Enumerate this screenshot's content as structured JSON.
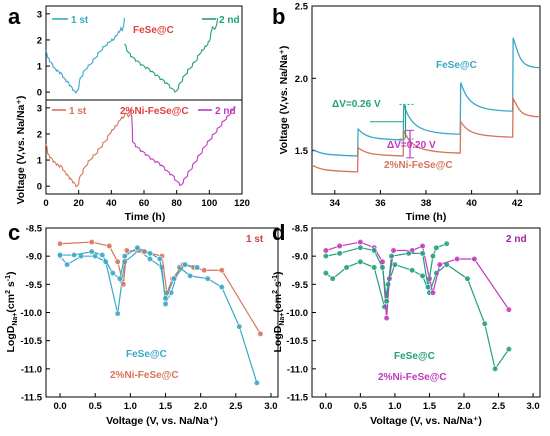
{
  "colors": {
    "blue": "#3aa8c5",
    "green": "#20a07a",
    "orange": "#d8735a",
    "purple": "#c038c0",
    "ab_red": "#e04040",
    "d_label": "#a020a0",
    "c_label": "#d04040",
    "b_label_c": "#3aa8c5",
    "b_label_ni": "#d87060"
  },
  "chart_data": [
    {
      "id": "a",
      "letter": "a",
      "type": "line",
      "xlabel": "Time (h)",
      "ylabel": "Voltage (V,vs. Na/Na⁺)",
      "xlim": [
        0,
        120
      ],
      "xticks": [
        "0",
        "20",
        "40",
        "60",
        "80",
        "100",
        "120"
      ],
      "top": {
        "ylim": [
          -0.3,
          3.3
        ],
        "yticks": [
          "0",
          "1",
          "2",
          "3"
        ],
        "legend": [
          "1 st",
          "2 nd"
        ],
        "label": "FeSe@C",
        "series": [
          {
            "name": "1 st",
            "color": "blue",
            "points": [
              [
                0,
                1.6
              ],
              [
                0.8,
                1.35
              ],
              [
                3,
                1.15
              ],
              [
                5,
                0.95
              ],
              [
                7,
                0.85
              ],
              [
                9,
                0.75
              ],
              [
                11,
                0.55
              ],
              [
                13,
                0.42
              ],
              [
                15,
                0.25
              ],
              [
                17,
                0.08
              ],
              [
                19,
                0.05
              ],
              [
                21,
                0.55
              ],
              [
                24,
                0.85
              ],
              [
                27,
                1.05
              ],
              [
                30,
                1.3
              ],
              [
                33,
                1.55
              ],
              [
                36,
                1.75
              ],
              [
                39,
                1.9
              ],
              [
                41,
                1.98
              ],
              [
                43,
                2.15
              ],
              [
                45,
                2.3
              ],
              [
                46,
                2.45
              ],
              [
                47,
                2.45
              ],
              [
                48,
                2.85
              ]
            ]
          },
          {
            "name": "2 nd",
            "color": "green",
            "points": [
              [
                48,
                1.85
              ],
              [
                50,
                1.55
              ],
              [
                53,
                1.35
              ],
              [
                56,
                1.2
              ],
              [
                59,
                1.05
              ],
              [
                62,
                0.95
              ],
              [
                65,
                0.8
              ],
              [
                68,
                0.65
              ],
              [
                71,
                0.5
              ],
              [
                74,
                0.35
              ],
              [
                77,
                0.15
              ],
              [
                80,
                0.05
              ],
              [
                82,
                0.35
              ],
              [
                85,
                0.65
              ],
              [
                88,
                0.9
              ],
              [
                91,
                1.15
              ],
              [
                94,
                1.45
              ],
              [
                96,
                1.6
              ],
              [
                98,
                1.75
              ],
              [
                100,
                1.95
              ],
              [
                101,
                2.3
              ],
              [
                102,
                2.5
              ],
              [
                104,
                2.5
              ],
              [
                105,
                2.85
              ]
            ]
          }
        ]
      },
      "bottom": {
        "ylim": [
          -0.3,
          3.3
        ],
        "yticks": [
          "0",
          "1",
          "2",
          "3"
        ],
        "legend": [
          "1 st",
          "2 nd"
        ],
        "label": "2%Ni-FeSe@C",
        "series": [
          {
            "name": "1 st",
            "color": "orange",
            "points": [
              [
                0,
                1.6
              ],
              [
                1,
                1.25
              ],
              [
                3,
                1.1
              ],
              [
                5,
                0.95
              ],
              [
                7,
                0.85
              ],
              [
                9,
                0.8
              ],
              [
                11,
                0.6
              ],
              [
                13,
                0.45
              ],
              [
                15,
                0.3
              ],
              [
                17,
                0.15
              ],
              [
                19,
                0.0
              ],
              [
                21,
                0.4
              ],
              [
                24,
                0.75
              ],
              [
                27,
                1.0
              ],
              [
                30,
                1.2
              ],
              [
                33,
                1.45
              ],
              [
                36,
                1.7
              ],
              [
                39,
                2.0
              ],
              [
                41,
                2.15
              ],
              [
                43,
                2.3
              ],
              [
                45,
                2.5
              ],
              [
                47,
                2.6
              ],
              [
                49,
                2.8
              ],
              [
                51,
                2.7
              ],
              [
                52,
                3.0
              ]
            ]
          },
          {
            "name": "2 nd",
            "color": "purple",
            "points": [
              [
                52,
                2.75
              ],
              [
                53,
                1.7
              ],
              [
                56,
                1.5
              ],
              [
                59,
                1.35
              ],
              [
                62,
                1.2
              ],
              [
                65,
                1.05
              ],
              [
                68,
                0.95
              ],
              [
                71,
                0.8
              ],
              [
                74,
                0.6
              ],
              [
                77,
                0.45
              ],
              [
                80,
                0.2
              ],
              [
                83,
                0.05
              ],
              [
                85,
                0.3
              ],
              [
                88,
                0.6
              ],
              [
                91,
                0.9
              ],
              [
                94,
                1.2
              ],
              [
                97,
                1.5
              ],
              [
                100,
                1.75
              ],
              [
                103,
                2.0
              ],
              [
                106,
                2.25
              ],
              [
                109,
                2.5
              ],
              [
                112,
                2.7
              ],
              [
                114,
                2.9
              ],
              [
                116,
                3.0
              ]
            ]
          }
        ]
      }
    },
    {
      "id": "b",
      "letter": "b",
      "type": "line",
      "xlabel": "Time (h)",
      "ylabel": "Voltage (V,vs. Na/Na⁺)",
      "xlim": [
        33,
        43
      ],
      "ylim": [
        1.2,
        2.5
      ],
      "xticks": [
        34,
        36,
        38,
        40,
        42
      ],
      "yticks": [
        "1.5",
        "2.0",
        "2.5"
      ],
      "series": [
        {
          "name": "FeSe@C",
          "color": "blue",
          "steps": [
            [
              33,
              35,
              1.51,
              1.47
            ],
            [
              35,
              37,
              1.65,
              1.58
            ],
            [
              37,
              39.5,
              1.82,
              1.62
            ],
            [
              39.5,
              41.8,
              1.97,
              1.78
            ],
            [
              41.8,
              43,
              2.28,
              2.08
            ]
          ]
        },
        {
          "name": "2%Ni-FeSe@C",
          "color": "orange",
          "steps": [
            [
              33,
              35,
              1.4,
              1.36
            ],
            [
              35,
              37,
              1.52,
              1.47
            ],
            [
              37,
              39.5,
              1.64,
              1.49
            ],
            [
              39.5,
              41.8,
              1.7,
              1.6
            ],
            [
              41.8,
              43,
              1.86,
              1.74
            ]
          ]
        }
      ],
      "annotations": {
        "dv1": "ΔV=0.26 V",
        "dv2": "ΔV=0.20 V",
        "label_c": "FeSe@C",
        "label_ni": "2%Ni-FeSe@C"
      }
    },
    {
      "id": "c",
      "letter": "c",
      "type": "line",
      "xlabel": "Voltage (V, vs. Na/Na⁺)",
      "ylabel": "LogD_Na+ (cm² s⁻¹)",
      "xlim": [
        -0.2,
        3.1
      ],
      "ylim": [
        -11.5,
        -8.5
      ],
      "xticks": [
        "0.0",
        "0.5",
        "1.0",
        "1.5",
        "2.0",
        "2.5",
        "3.0"
      ],
      "yticks": [
        "-8.5",
        "-9.0",
        "-9.5",
        "-10.0",
        "-10.5",
        "-11.0",
        "-11.5"
      ],
      "label": "1 st",
      "legend": [
        "FeSe@C",
        "2%Ni-FeSe@C"
      ],
      "series": [
        {
          "name": "FeSe@C",
          "color": "blue",
          "points": [
            [
              0.0,
              -9.0
            ],
            [
              0.1,
              -9.15
            ],
            [
              0.3,
              -9.0
            ],
            [
              0.5,
              -9.0
            ],
            [
              0.65,
              -9.1
            ],
            [
              0.82,
              -10.02
            ],
            [
              0.88,
              -9.45
            ],
            [
              0.92,
              -9.1
            ],
            [
              1.12,
              -8.9
            ],
            [
              1.28,
              -9.05
            ],
            [
              1.45,
              -9.2
            ],
            [
              1.5,
              -9.85
            ],
            [
              1.58,
              -9.65
            ],
            [
              1.7,
              -9.2
            ],
            [
              1.85,
              -9.35
            ],
            [
              2.1,
              -9.4
            ],
            [
              2.3,
              -9.55
            ],
            [
              2.55,
              -10.25
            ],
            [
              2.8,
              -11.25
            ]
          ]
        },
        {
          "name": "2%Ni-FeSe@C",
          "color": "orange",
          "points": [
            [
              0.0,
              -8.78
            ],
            [
              0.45,
              -8.75
            ],
            [
              0.7,
              -8.82
            ],
            [
              0.82,
              -9.1
            ],
            [
              0.9,
              -9.5
            ],
            [
              0.95,
              -8.9
            ],
            [
              1.2,
              -8.92
            ],
            [
              1.45,
              -9.0
            ],
            [
              1.52,
              -9.65
            ],
            [
              1.6,
              -9.4
            ],
            [
              1.75,
              -9.15
            ],
            [
              1.9,
              -9.2
            ],
            [
              2.05,
              -9.25
            ],
            [
              2.3,
              -9.25
            ],
            [
              2.85,
              -10.38
            ]
          ]
        },
        {
          "name": "FeSe@C (2)",
          "color": "blue",
          "points": [
            [
              0.0,
              -8.98
            ],
            [
              0.2,
              -8.98
            ],
            [
              0.45,
              -8.92
            ],
            [
              0.6,
              -8.98
            ],
            [
              0.75,
              -9.3
            ],
            [
              0.85,
              -9.4
            ],
            [
              0.92,
              -9.0
            ],
            [
              1.1,
              -8.85
            ],
            [
              1.28,
              -8.95
            ],
            [
              1.42,
              -9.05
            ],
            [
              1.5,
              -9.75
            ],
            [
              1.62,
              -9.4
            ],
            [
              1.78,
              -9.15
            ],
            [
              1.95,
              -9.2
            ]
          ]
        }
      ]
    },
    {
      "id": "d",
      "letter": "d",
      "type": "line",
      "xlabel": "Voltage (V, vs. Na/Na⁺)",
      "ylabel": "LogD_Na+ (cm² s⁻¹)",
      "xlim": [
        -0.2,
        3.1
      ],
      "ylim": [
        -11.5,
        -8.5
      ],
      "xticks": [
        "0.0",
        "0.5",
        "1.0",
        "1.5",
        "2.0",
        "2.5",
        "3.0"
      ],
      "yticks": [
        "-8.5",
        "-9.0",
        "-9.5",
        "-10.0",
        "-10.5",
        "-11.0",
        "-11.5"
      ],
      "label": "2 nd",
      "legend": [
        "FeSe@C",
        "2%Ni-FeSe@C"
      ],
      "series": [
        {
          "name": "FeSe@C",
          "color": "green",
          "points": [
            [
              0.0,
              -9.3
            ],
            [
              0.1,
              -9.4
            ],
            [
              0.3,
              -9.2
            ],
            [
              0.5,
              -9.1
            ],
            [
              0.7,
              -9.2
            ],
            [
              0.85,
              -9.9
            ],
            [
              0.9,
              -9.5
            ],
            [
              1.0,
              -9.15
            ],
            [
              1.25,
              -9.25
            ],
            [
              1.4,
              -9.35
            ],
            [
              1.5,
              -9.65
            ],
            [
              1.6,
              -9.3
            ],
            [
              1.75,
              -9.15
            ],
            [
              2.05,
              -9.4
            ],
            [
              2.3,
              -10.2
            ],
            [
              2.45,
              -11.0
            ],
            [
              2.65,
              -10.65
            ]
          ]
        },
        {
          "name": "2%Ni-FeSe@C",
          "color": "purple",
          "points": [
            [
              0.0,
              -8.9
            ],
            [
              0.2,
              -8.82
            ],
            [
              0.5,
              -8.75
            ],
            [
              0.7,
              -8.85
            ],
            [
              0.82,
              -9.1
            ],
            [
              0.88,
              -10.1
            ],
            [
              0.92,
              -9.4
            ],
            [
              0.98,
              -8.9
            ],
            [
              1.25,
              -8.9
            ],
            [
              1.4,
              -8.82
            ],
            [
              1.5,
              -9.4
            ],
            [
              1.55,
              -9.65
            ],
            [
              1.65,
              -9.15
            ],
            [
              1.9,
              -9.05
            ],
            [
              2.15,
              -9.05
            ],
            [
              2.65,
              -9.95
            ]
          ]
        },
        {
          "name": "FeSe@C (2)",
          "color": "green",
          "points": [
            [
              0.0,
              -9.0
            ],
            [
              0.2,
              -8.95
            ],
            [
              0.5,
              -8.85
            ],
            [
              0.7,
              -8.9
            ],
            [
              0.82,
              -9.2
            ],
            [
              0.88,
              -9.8
            ],
            [
              0.95,
              -9.0
            ],
            [
              1.2,
              -8.95
            ],
            [
              1.4,
              -8.95
            ],
            [
              1.48,
              -9.55
            ],
            [
              1.55,
              -9.0
            ],
            [
              1.6,
              -8.85
            ],
            [
              1.75,
              -8.78
            ]
          ]
        }
      ]
    }
  ]
}
